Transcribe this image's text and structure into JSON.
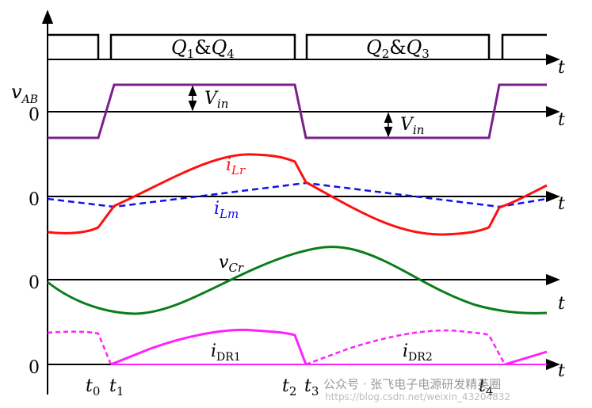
{
  "colors": {
    "axis": "#000000",
    "drive": "#000000",
    "v_ab": "#7a1f8c",
    "i_lr": "#ff1010",
    "i_lm": "#1010ee",
    "v_cr": "#0a7d1a",
    "i_dr": "#ff20ff",
    "watermark": "#9a9a9a"
  },
  "drive_labels": {
    "q14_main": "Q",
    "q14_sub1": "1",
    "q14_amp": "&",
    "q14_main2": "Q",
    "q14_sub2": "4",
    "q23_main": "Q",
    "q23_sub1": "2",
    "q23_amp": "&",
    "q23_main2": "Q",
    "q23_sub2": "3"
  },
  "axis_label": "t",
  "zero": "0",
  "traces": {
    "v_ab_main": "v",
    "v_ab_sub": "AB",
    "vin_main": "V",
    "vin_sub": "in",
    "i_lr_main": "i",
    "i_lr_sub": "Lr",
    "i_lm_main": "i",
    "i_lm_sub": "Lm",
    "v_cr_main": "v",
    "v_cr_sub": "Cr",
    "i_dr1_main": "i",
    "i_dr1_sub": "DR1",
    "i_dr2_main": "i",
    "i_dr2_sub": "DR2"
  },
  "time_markers": [
    {
      "main": "t",
      "sub": "0"
    },
    {
      "main": "t",
      "sub": "1"
    },
    {
      "main": "t",
      "sub": "2"
    },
    {
      "main": "t",
      "sub": "3"
    },
    {
      "main": "t",
      "sub": "4"
    }
  ],
  "watermark": {
    "line1": "公众号 · 张飞电子电源研发精英圈",
    "line2": "https://blog.csdn.net/weixin_43204832"
  }
}
